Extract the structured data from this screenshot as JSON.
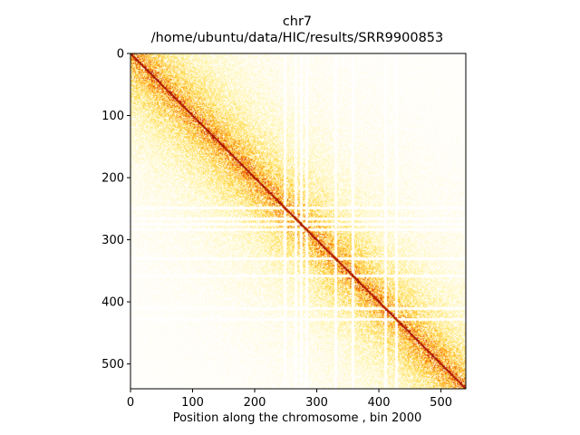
{
  "chart_data": {
    "type": "heatmap",
    "title_lines": [
      "chr7",
      "/home/ubuntu/data/HIC/results/SRR9900853"
    ],
    "xlabel": "Position along the chromosome , bin 2000",
    "ylabel": "",
    "xlim": [
      0,
      540
    ],
    "ylim": [
      540,
      0
    ],
    "x_ticks": [
      0,
      100,
      200,
      300,
      400,
      500
    ],
    "y_ticks": [
      0,
      100,
      200,
      300,
      400,
      500
    ],
    "colormap": [
      "#ffffff",
      "#fff3a0",
      "#ffd23c",
      "#ff9a1a",
      "#e0420a",
      "#8c0000"
    ],
    "matrix_size": 540,
    "diagonal_peak": 1.0,
    "gaps_bins": [
      248,
      266,
      275,
      283,
      330,
      358,
      410,
      428
    ],
    "grid": false,
    "legend": "none"
  }
}
